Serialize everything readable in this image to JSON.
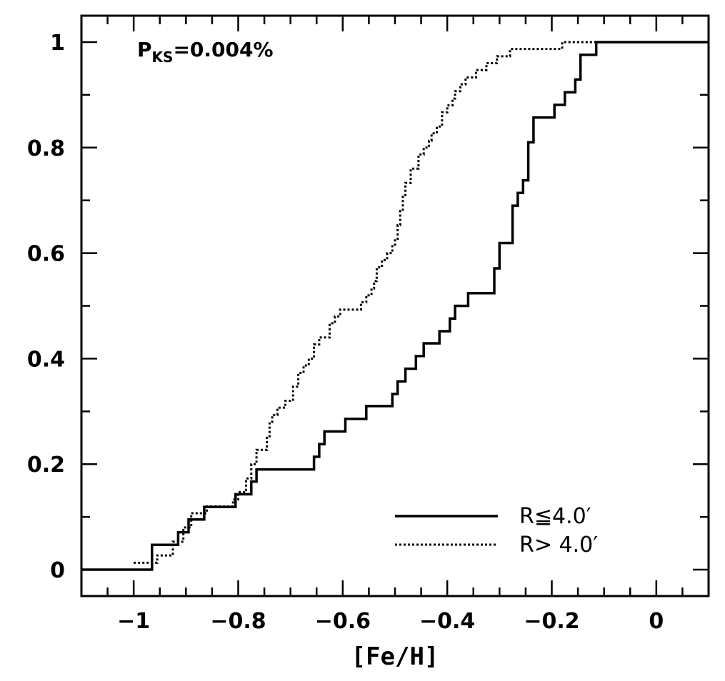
{
  "chart_data": {
    "type": "line",
    "title": "",
    "xlabel": "[Fe/H]",
    "ylabel": "",
    "xlim": [
      -1.1,
      0.1
    ],
    "ylim": [
      -0.05,
      1.05
    ],
    "x_ticks": [
      -1,
      -0.8,
      -0.6,
      -0.4,
      -0.2,
      0
    ],
    "x_tick_labels": [
      "−1",
      "−0.8",
      "−0.6",
      "−0.4",
      "−0.2",
      "0"
    ],
    "y_ticks": [
      0,
      0.2,
      0.4,
      0.6,
      0.8,
      1
    ],
    "y_tick_labels": [
      "0",
      "0.2",
      "0.4",
      "0.6",
      "0.8",
      "1"
    ],
    "annotation": {
      "main": "P",
      "subscript": "KS",
      "rest": "=0.004%"
    },
    "legend_position": "bottom-right",
    "series": [
      {
        "name": "R≦4.0′",
        "style": "solid",
        "steps": [
          [
            -1.1,
            0.0
          ],
          [
            -0.965,
            0.047
          ],
          [
            -0.915,
            0.071
          ],
          [
            -0.895,
            0.095
          ],
          [
            -0.865,
            0.119
          ],
          [
            -0.805,
            0.143
          ],
          [
            -0.775,
            0.167
          ],
          [
            -0.765,
            0.19
          ],
          [
            -0.655,
            0.214
          ],
          [
            -0.645,
            0.238
          ],
          [
            -0.635,
            0.262
          ],
          [
            -0.595,
            0.286
          ],
          [
            -0.555,
            0.31
          ],
          [
            -0.505,
            0.333
          ],
          [
            -0.495,
            0.357
          ],
          [
            -0.48,
            0.381
          ],
          [
            -0.46,
            0.405
          ],
          [
            -0.445,
            0.429
          ],
          [
            -0.415,
            0.452
          ],
          [
            -0.395,
            0.476
          ],
          [
            -0.385,
            0.5
          ],
          [
            -0.36,
            0.524
          ],
          [
            -0.31,
            0.571
          ],
          [
            -0.3,
            0.619
          ],
          [
            -0.275,
            0.69
          ],
          [
            -0.265,
            0.714
          ],
          [
            -0.255,
            0.738
          ],
          [
            -0.245,
            0.81
          ],
          [
            -0.235,
            0.857
          ],
          [
            -0.195,
            0.881
          ],
          [
            -0.175,
            0.905
          ],
          [
            -0.155,
            0.929
          ],
          [
            -0.145,
            0.976
          ],
          [
            -0.115,
            1.0
          ],
          [
            0.1,
            1.0
          ]
        ]
      },
      {
        "name": "R> 4.0′",
        "style": "dotted",
        "steps": [
          [
            -1.0,
            0.013
          ],
          [
            -0.955,
            0.027
          ],
          [
            -0.925,
            0.053
          ],
          [
            -0.905,
            0.08
          ],
          [
            -0.89,
            0.107
          ],
          [
            -0.86,
            0.12
          ],
          [
            -0.81,
            0.133
          ],
          [
            -0.8,
            0.147
          ],
          [
            -0.785,
            0.173
          ],
          [
            -0.775,
            0.2
          ],
          [
            -0.765,
            0.227
          ],
          [
            -0.745,
            0.253
          ],
          [
            -0.74,
            0.28
          ],
          [
            -0.735,
            0.293
          ],
          [
            -0.725,
            0.307
          ],
          [
            -0.71,
            0.32
          ],
          [
            -0.695,
            0.347
          ],
          [
            -0.685,
            0.373
          ],
          [
            -0.675,
            0.387
          ],
          [
            -0.665,
            0.4
          ],
          [
            -0.655,
            0.427
          ],
          [
            -0.645,
            0.44
          ],
          [
            -0.625,
            0.467
          ],
          [
            -0.615,
            0.48
          ],
          [
            -0.605,
            0.493
          ],
          [
            -0.565,
            0.507
          ],
          [
            -0.555,
            0.52
          ],
          [
            -0.545,
            0.533
          ],
          [
            -0.54,
            0.547
          ],
          [
            -0.535,
            0.573
          ],
          [
            -0.525,
            0.587
          ],
          [
            -0.515,
            0.6
          ],
          [
            -0.505,
            0.613
          ],
          [
            -0.5,
            0.627
          ],
          [
            -0.495,
            0.653
          ],
          [
            -0.49,
            0.68
          ],
          [
            -0.485,
            0.707
          ],
          [
            -0.48,
            0.733
          ],
          [
            -0.47,
            0.76
          ],
          [
            -0.455,
            0.787
          ],
          [
            -0.445,
            0.8
          ],
          [
            -0.435,
            0.813
          ],
          [
            -0.43,
            0.827
          ],
          [
            -0.42,
            0.84
          ],
          [
            -0.41,
            0.867
          ],
          [
            -0.4,
            0.88
          ],
          [
            -0.39,
            0.893
          ],
          [
            -0.385,
            0.907
          ],
          [
            -0.375,
            0.92
          ],
          [
            -0.365,
            0.933
          ],
          [
            -0.345,
            0.947
          ],
          [
            -0.325,
            0.96
          ],
          [
            -0.305,
            0.973
          ],
          [
            -0.28,
            0.987
          ],
          [
            -0.18,
            1.0
          ],
          [
            0.1,
            1.0
          ]
        ]
      }
    ]
  }
}
